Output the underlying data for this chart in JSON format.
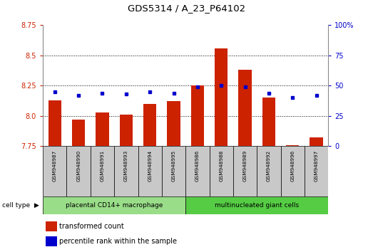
{
  "title": "GDS5314 / A_23_P64102",
  "samples": [
    "GSM948987",
    "GSM948990",
    "GSM948991",
    "GSM948993",
    "GSM948994",
    "GSM948995",
    "GSM948986",
    "GSM948988",
    "GSM948989",
    "GSM948992",
    "GSM948996",
    "GSM948997"
  ],
  "transformed_counts": [
    8.13,
    7.97,
    8.03,
    8.01,
    8.1,
    8.12,
    8.25,
    8.56,
    8.38,
    8.15,
    7.76,
    7.82
  ],
  "percentile_ranks": [
    45,
    42,
    44,
    43,
    45,
    44,
    49,
    50,
    49,
    44,
    40,
    42
  ],
  "group1_label": "placental CD14+ macrophage",
  "group2_label": "multinucleated giant cells",
  "group1_count": 6,
  "group2_count": 6,
  "bar_color": "#cc2200",
  "dot_color": "#0000cc",
  "bar_bottom": 7.75,
  "ylim_left": [
    7.75,
    8.75
  ],
  "ylim_right": [
    0,
    100
  ],
  "yticks_left": [
    7.75,
    8.0,
    8.25,
    8.5,
    8.75
  ],
  "yticks_right": [
    0,
    25,
    50,
    75,
    100
  ],
  "grid_values": [
    8.0,
    8.25,
    8.5
  ],
  "cell_type_label": "cell type",
  "legend_bar_label": "transformed count",
  "legend_dot_label": "percentile rank within the sample",
  "group1_color": "#99dd88",
  "group2_color": "#55cc44",
  "tick_label_color_left": "#cc2200",
  "tick_label_color_right": "#0000cc",
  "bg_color_plot": "#ffffff",
  "bg_color_sample_row": "#c8c8c8",
  "border_color": "#888888"
}
